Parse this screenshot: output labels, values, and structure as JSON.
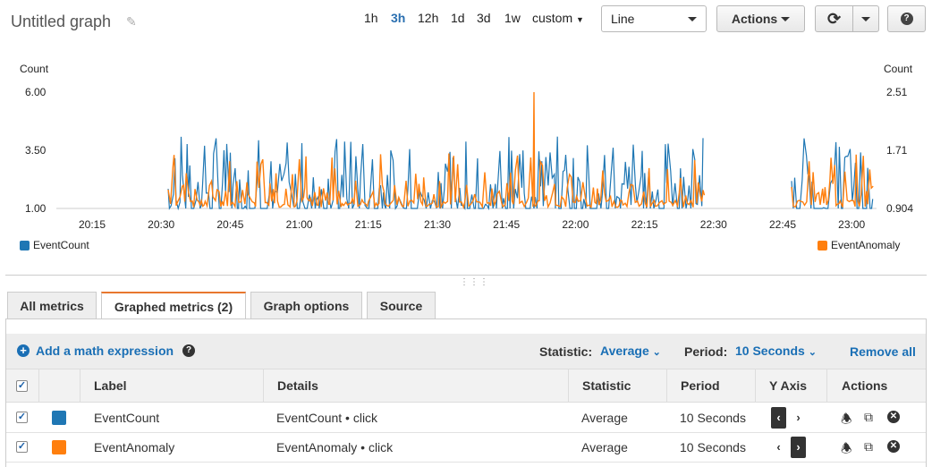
{
  "header": {
    "title": "Untitled graph",
    "ranges": [
      "1h",
      "3h",
      "12h",
      "1d",
      "3d",
      "1w",
      "custom"
    ],
    "selected_range": "3h",
    "chart_type": "Line",
    "actions_label": "Actions",
    "help_label": "?"
  },
  "chart_data": {
    "type": "line",
    "left_axis": {
      "label": "Count",
      "ticks": [
        "6.00",
        "3.50",
        "1.00"
      ],
      "range": [
        1.0,
        6.0
      ]
    },
    "right_axis": {
      "label": "Count",
      "ticks": [
        "2.51",
        "1.71",
        "0.904"
      ],
      "range": [
        0.904,
        2.51
      ]
    },
    "x_ticks": [
      "20:15",
      "20:30",
      "20:45",
      "21:00",
      "21:15",
      "21:30",
      "21:45",
      "22:00",
      "22:15",
      "22:30",
      "22:45",
      "23:00"
    ],
    "series": [
      {
        "name": "EventCount",
        "color": "#1f77b4",
        "axis": "left"
      },
      {
        "name": "EventAnomaly",
        "color": "#ff7f0e",
        "axis": "right"
      }
    ],
    "peak": {
      "series": "EventAnomaly",
      "x": "21:50",
      "y": 2.51
    }
  },
  "legend": {
    "left": "EventCount",
    "right": "EventAnomaly"
  },
  "tabs": [
    "All metrics",
    "Graphed metrics (2)",
    "Graph options",
    "Source"
  ],
  "active_tab": "Graphed metrics (2)",
  "toolbar": {
    "add_math": "Add a math expression",
    "statistic_label": "Statistic:",
    "statistic_value": "Average",
    "period_label": "Period:",
    "period_value": "10 Seconds",
    "remove_all": "Remove all"
  },
  "table": {
    "headers": [
      "Label",
      "Details",
      "Statistic",
      "Period",
      "Y Axis",
      "Actions"
    ],
    "rows": [
      {
        "label": "EventCount",
        "details": "EventCount • click",
        "statistic": "Average",
        "period": "10 Seconds",
        "color": "#1f77b4",
        "y_axis": "left"
      },
      {
        "label": "EventAnomaly",
        "details": "EventAnomaly • click",
        "statistic": "Average",
        "period": "10 Seconds",
        "color": "#ff7f0e",
        "y_axis": "right"
      }
    ]
  }
}
